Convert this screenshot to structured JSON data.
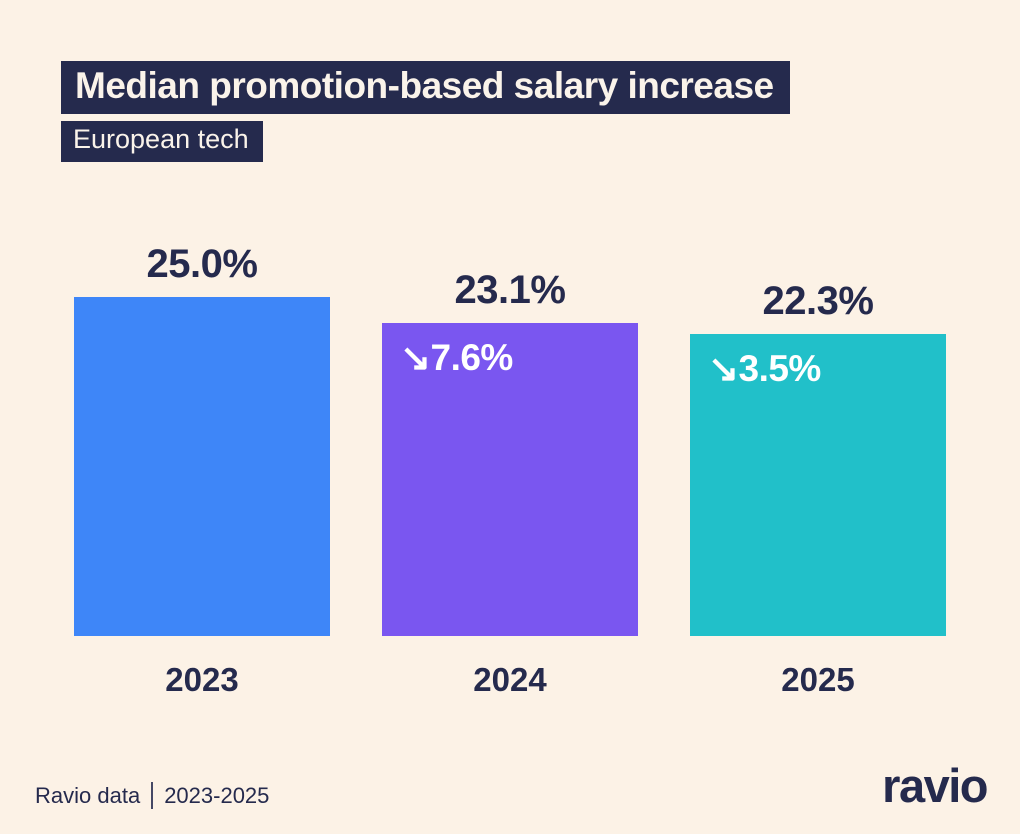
{
  "chart_data": {
    "type": "bar",
    "title": "Median promotion-based salary increase",
    "subtitle": "European tech",
    "categories": [
      "2023",
      "2024",
      "2025"
    ],
    "values": [
      25.0,
      23.1,
      22.3
    ],
    "value_labels": [
      "25.0%",
      "23.1%",
      "22.3%"
    ],
    "change_labels": [
      "",
      "↘7.6%",
      "↘3.5%"
    ],
    "bar_colors": [
      "#3e86f8",
      "#7a56f0",
      "#21c0c9"
    ],
    "ylabel": "",
    "xlabel": "",
    "ylim": [
      0,
      25
    ],
    "grid": false,
    "legend": "none"
  },
  "footer": {
    "source": "Ravio data",
    "range": "2023-2025",
    "logo_text": "ravio"
  },
  "colors": {
    "background": "#fcf2e6",
    "navy": "#252a4d",
    "blue": "#3e86f8",
    "purple": "#7a56f0",
    "teal": "#21c0c9"
  }
}
